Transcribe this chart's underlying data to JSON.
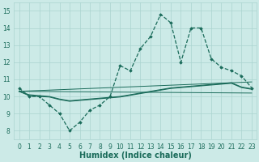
{
  "title": "",
  "xlabel": "Humidex (Indice chaleur)",
  "bg_color": "#cceae7",
  "grid_color": "#aad4d0",
  "line_color": "#1a6b5a",
  "xlim": [
    -0.5,
    23.5
  ],
  "ylim": [
    7.5,
    15.5
  ],
  "yticks": [
    8,
    9,
    10,
    11,
    12,
    13,
    14,
    15
  ],
  "xticks": [
    0,
    1,
    2,
    3,
    4,
    5,
    6,
    7,
    8,
    9,
    10,
    11,
    12,
    13,
    14,
    15,
    16,
    17,
    18,
    19,
    20,
    21,
    22,
    23
  ],
  "main_y": [
    10.5,
    10.0,
    10.0,
    9.5,
    9.0,
    8.0,
    8.5,
    9.2,
    9.5,
    10.0,
    11.8,
    11.5,
    12.8,
    13.5,
    14.8,
    14.3,
    12.0,
    14.0,
    14.0,
    12.2,
    11.7,
    11.5,
    11.2,
    10.5
  ],
  "smooth1_y": [
    10.3,
    10.1,
    10.05,
    10.0,
    9.85,
    9.75,
    9.8,
    9.85,
    9.9,
    9.95,
    10.0,
    10.1,
    10.2,
    10.3,
    10.4,
    10.5,
    10.55,
    10.6,
    10.65,
    10.7,
    10.75,
    10.8,
    10.55,
    10.45
  ],
  "smooth2_y": [
    10.3,
    10.05,
    10.0,
    9.97,
    9.82,
    9.72,
    9.77,
    9.82,
    9.87,
    9.92,
    9.97,
    10.07,
    10.17,
    10.27,
    10.37,
    10.47,
    10.52,
    10.57,
    10.62,
    10.67,
    10.72,
    10.77,
    10.52,
    10.42
  ],
  "reg1": [
    10.3,
    10.85
  ],
  "reg2": [
    10.3,
    10.2
  ],
  "font_color": "#1a6b5a",
  "tick_fontsize": 5.5,
  "label_fontsize": 7.0
}
